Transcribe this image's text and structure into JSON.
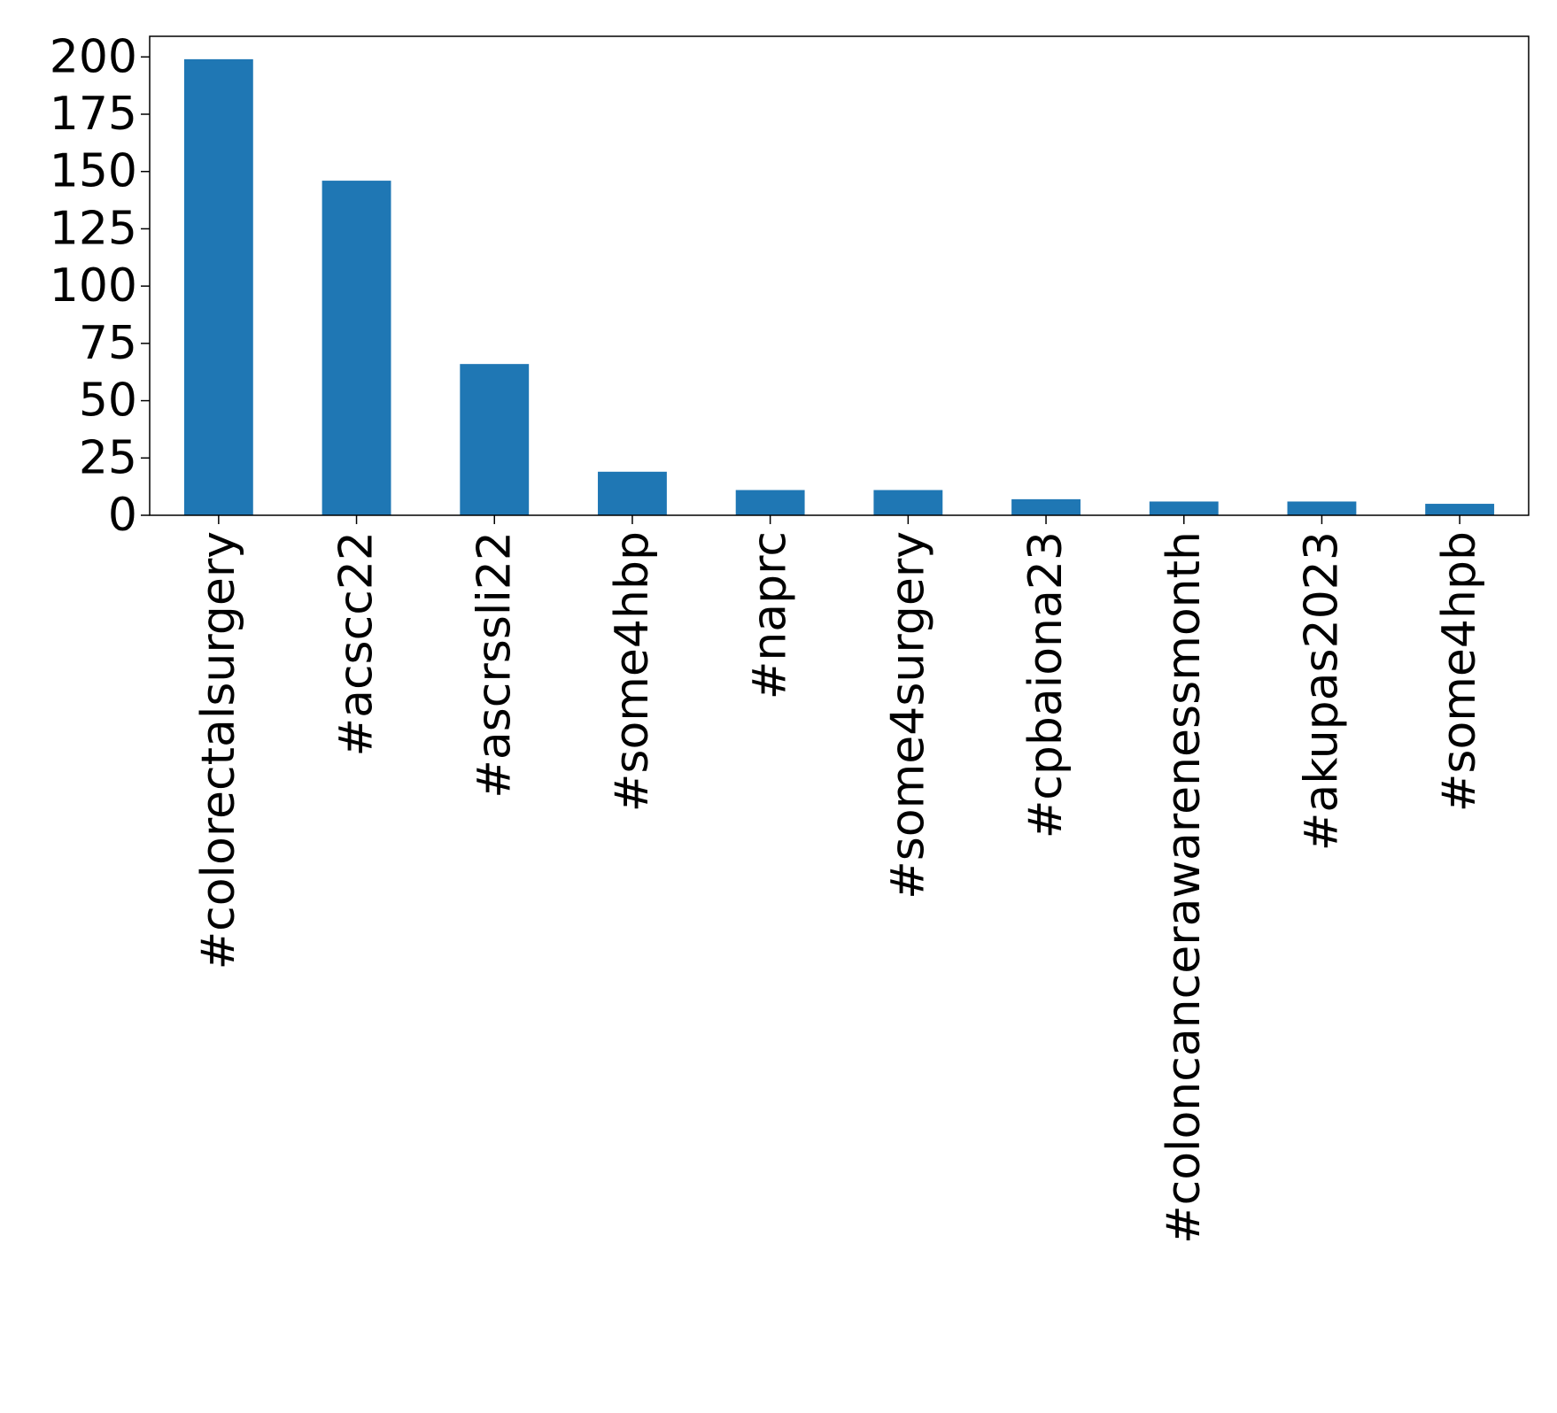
{
  "chart_data": {
    "type": "bar",
    "title": "",
    "xlabel": "",
    "ylabel": "",
    "categories": [
      "#colorectalsurgery",
      "#acscc22",
      "#ascrssli22",
      "#some4hbp",
      "#naprc",
      "#some4surgery",
      "#cpbaiona23",
      "#coloncancerawarenessmonth",
      "#akupas2023",
      "#some4hpb"
    ],
    "values": [
      199,
      146,
      66,
      19,
      11,
      11,
      7,
      6,
      6,
      5
    ],
    "ylim": [
      0,
      209
    ],
    "yticks": [
      0,
      25,
      50,
      75,
      100,
      125,
      150,
      175,
      200
    ],
    "ytick_labels": [
      "0",
      "25",
      "50",
      "75",
      "100",
      "125",
      "150",
      "175",
      "200"
    ],
    "bar_color": "#1f77b4",
    "grid": false,
    "legend": "none"
  }
}
